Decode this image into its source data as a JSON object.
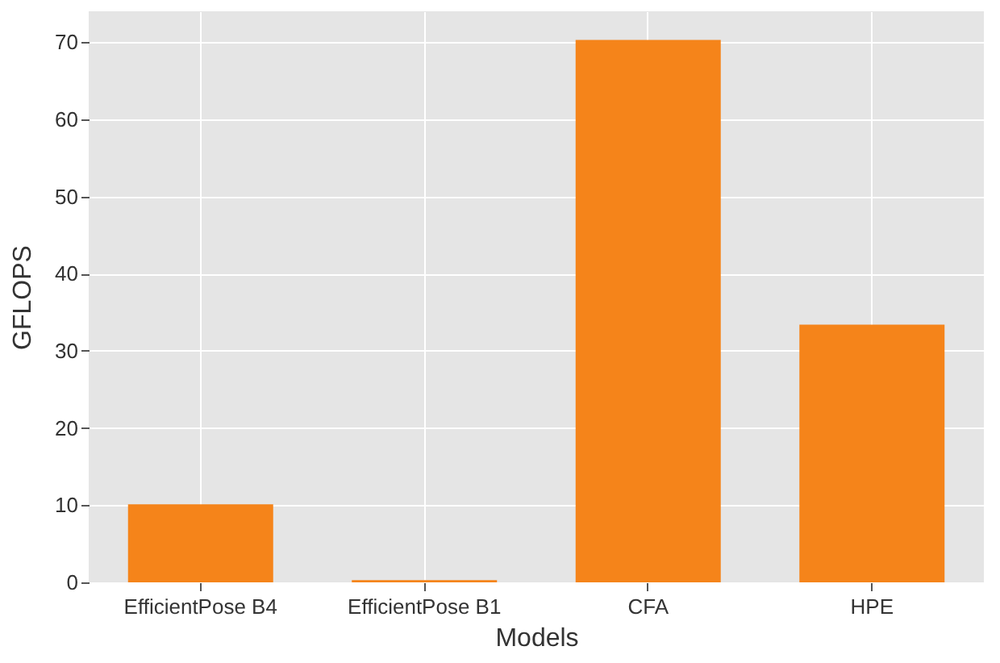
{
  "chart_data": {
    "type": "bar",
    "xlabel": "Models",
    "ylabel": "GFLOPS",
    "categories": [
      "EfficientPose B4",
      "EfficientPose B1",
      "CFA",
      "HPE"
    ],
    "values": [
      10.1,
      0.3,
      70.3,
      33.4
    ],
    "color": "#f5841a",
    "ylim": [
      0,
      74
    ],
    "yticks": [
      0,
      10,
      20,
      30,
      40,
      50,
      60,
      70
    ],
    "grid": true
  }
}
